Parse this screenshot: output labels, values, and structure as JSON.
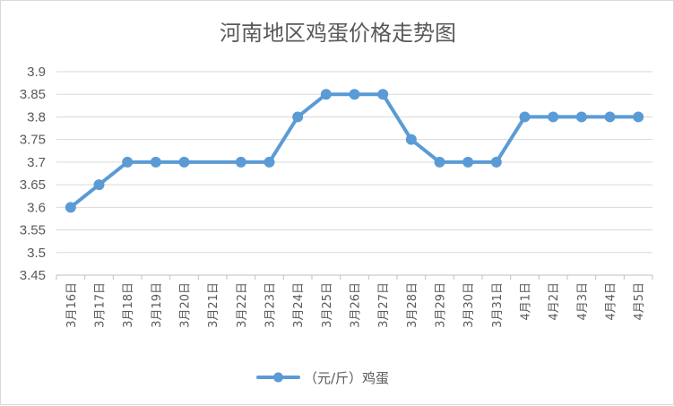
{
  "chart_data": {
    "type": "line",
    "title": "河南地区鸡蛋价格走势图",
    "xlabel": "",
    "ylabel": "",
    "categories": [
      "3月16日",
      "3月17日",
      "3月18日",
      "3月19日",
      "3月20日",
      "3月21日",
      "3月22日",
      "3月23日",
      "3月24日",
      "3月25日",
      "3月26日",
      "3月27日",
      "3月28日",
      "3月29日",
      "3月30日",
      "3月31日",
      "4月1日",
      "4月2日",
      "4月3日",
      "4月4日",
      "4月5日"
    ],
    "series": [
      {
        "name": "（元/斤）鸡蛋",
        "color": "#5b9bd5",
        "values": [
          3.6,
          3.65,
          3.7,
          3.7,
          3.7,
          null,
          3.7,
          3.7,
          3.8,
          3.85,
          3.85,
          3.85,
          3.75,
          3.7,
          3.7,
          3.7,
          3.8,
          3.8,
          3.8,
          3.8,
          3.8
        ]
      }
    ],
    "ylim": [
      3.45,
      3.9
    ],
    "yticks": [
      "3.45",
      "3.5",
      "3.55",
      "3.6",
      "3.65",
      "3.7",
      "3.75",
      "3.8",
      "3.85",
      "3.9"
    ],
    "grid": true,
    "legend": "bottom"
  }
}
